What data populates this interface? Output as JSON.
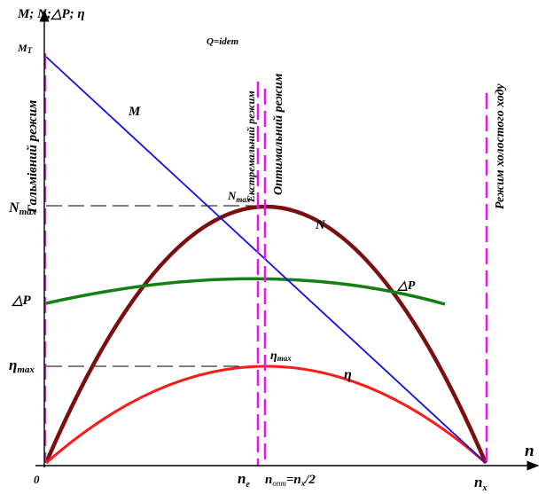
{
  "labels": {
    "y_axis": "M; N;△P; η",
    "x_axis": "n",
    "origin": "0",
    "mt": "M",
    "mt_sub": "T",
    "nmax": "N",
    "nmax_sub": "max",
    "dp": "△P",
    "eta_max": "η",
    "eta_max_sub": "max",
    "m_curve": "M",
    "n_curve": "N",
    "dp_curve": "△P",
    "eta_curve": "η",
    "nmax_point": "N",
    "nmax_point_sub": "max",
    "eta_point": "η",
    "eta_point_sub": "max",
    "q": "Q=idem",
    "ne": "n",
    "ne_sub": "e",
    "nopt": "n",
    "nopt_sub": "опт",
    "nopt_eq": "=n",
    "nopt_x_sub": "x",
    "nopt_div": "/2",
    "nx": "n",
    "nx_sub": "x",
    "mode_brake": "Гальмівний режим",
    "mode_extreme": "Екстремальний режим",
    "mode_optimal": "Оптимальний режим",
    "mode_idle": "Режим холостого ходу"
  },
  "colors": {
    "m_curve": "#1010e0",
    "n_curve": "#7a0f0f",
    "dp_curve": "#138013",
    "eta_curve": "#ff1a1a",
    "mode_lines": "#ee10ee"
  }
}
